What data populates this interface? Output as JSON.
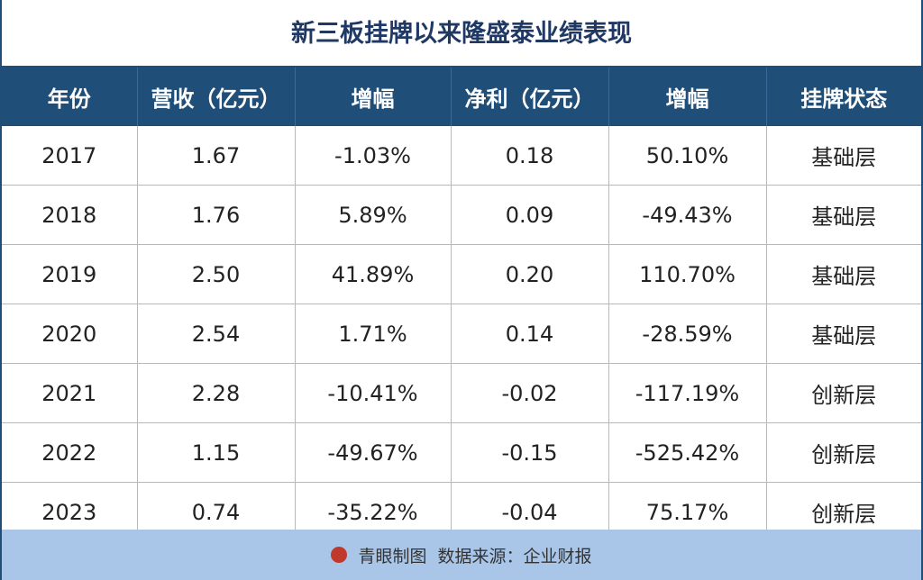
{
  "title": "新三板挂牌以来隆盛泰业绩表现",
  "table": {
    "headers": [
      "年份",
      "营收（亿元）",
      "增幅",
      "净利（亿元）",
      "增幅",
      "挂牌状态"
    ],
    "rows": [
      [
        "2017",
        "1.67",
        "-1.03%",
        "0.18",
        "50.10%",
        "基础层"
      ],
      [
        "2018",
        "1.76",
        "5.89%",
        "0.09",
        "-49.43%",
        "基础层"
      ],
      [
        "2019",
        "2.50",
        "41.89%",
        "0.20",
        "110.70%",
        "基础层"
      ],
      [
        "2020",
        "2.54",
        "1.71%",
        "0.14",
        "-28.59%",
        "基础层"
      ],
      [
        "2021",
        "2.28",
        "-10.41%",
        "-0.02",
        "-117.19%",
        "创新层"
      ],
      [
        "2022",
        "1.15",
        "-49.67%",
        "-0.15",
        "-525.42%",
        "创新层"
      ],
      [
        "2023",
        "0.74",
        "-35.22%",
        "-0.04",
        "75.17%",
        "创新层"
      ]
    ]
  },
  "footer": {
    "brand": "青眼制图",
    "source": "数据来源：企业财报"
  }
}
